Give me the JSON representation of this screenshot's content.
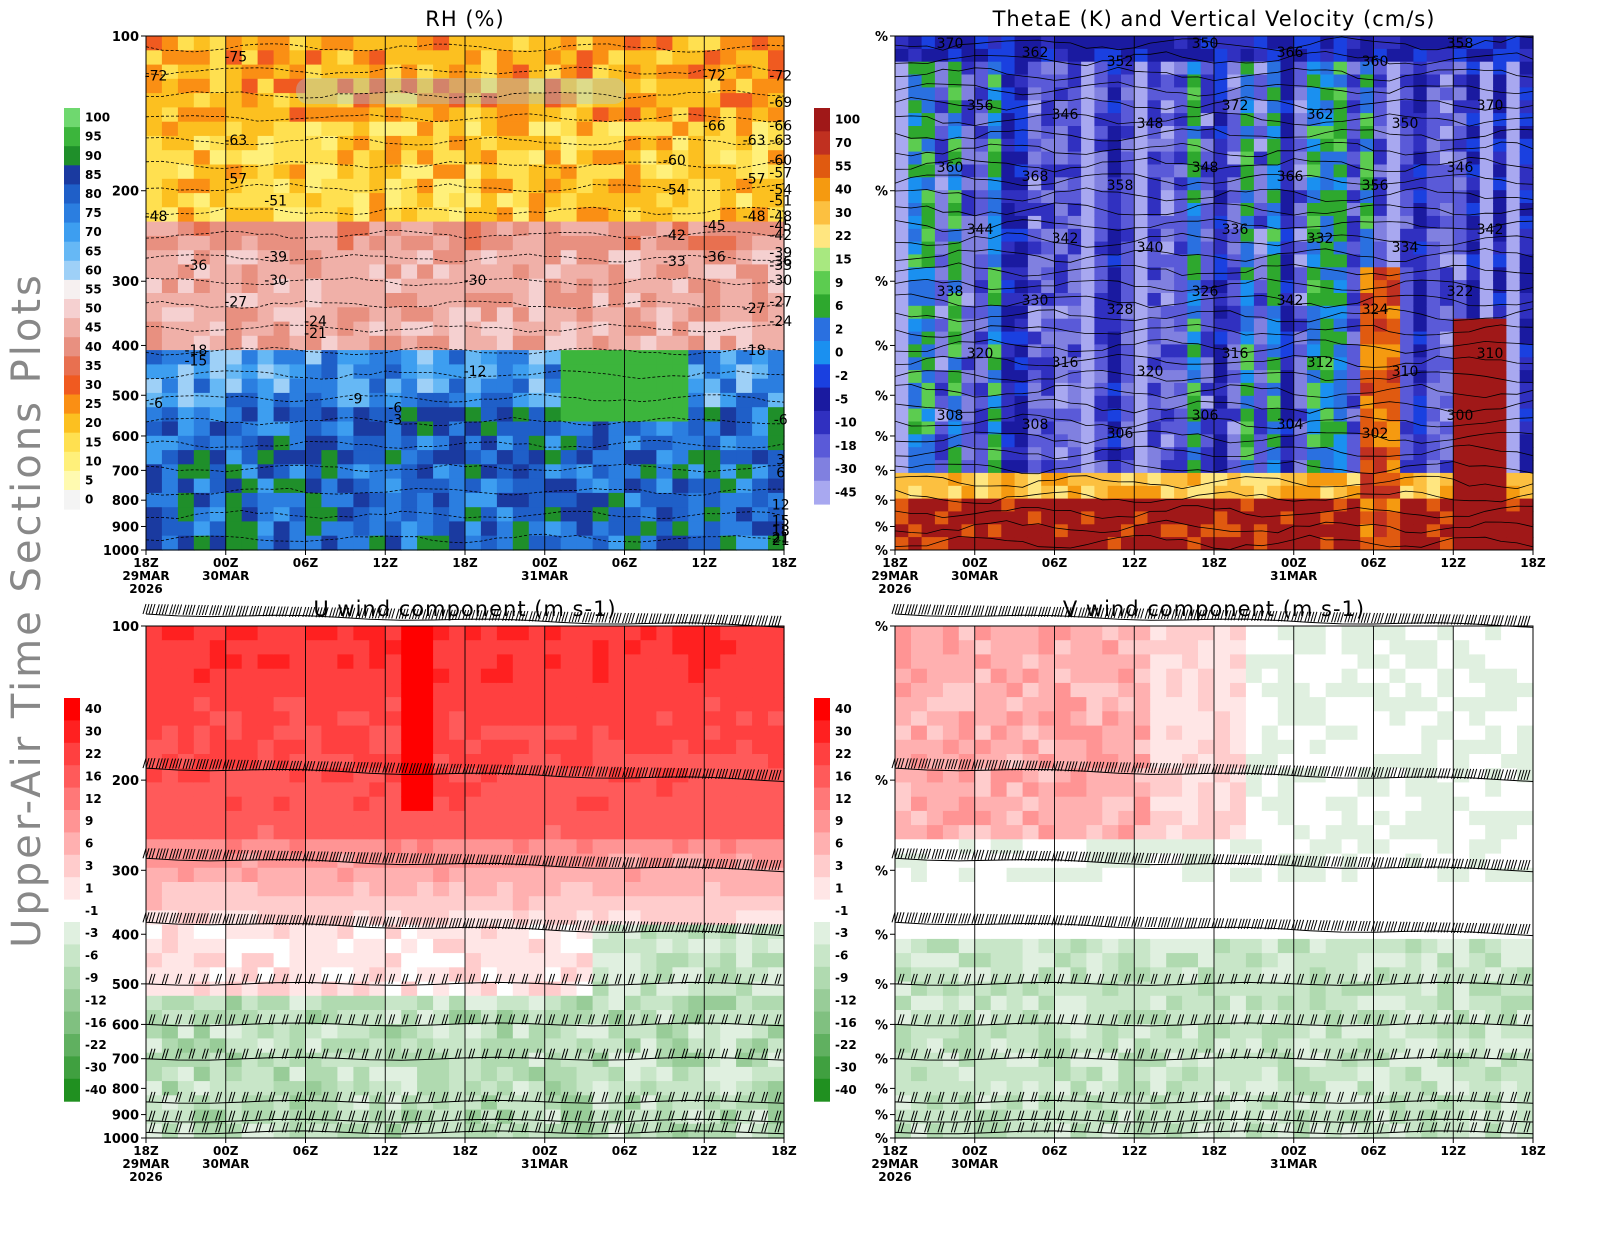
{
  "page": {
    "side_title": "Upper-Air Time Sections Plots"
  },
  "chart_data": [
    {
      "id": "rh",
      "type": "heatmap",
      "title": "RH (%)",
      "ylabel": "",
      "ylim": [
        1000,
        100
      ],
      "y_scale": "log-pressure",
      "y_ticks": [
        "100",
        "200",
        "300",
        "400",
        "500",
        "600",
        "700",
        "800",
        "900",
        "1000"
      ],
      "x_ticks": [
        "18Z",
        "00Z",
        "06Z",
        "12Z",
        "18Z",
        "00Z",
        "06Z",
        "12Z",
        "18Z"
      ],
      "x_date_labels": [
        {
          "at": 0,
          "lines": [
            "29MAR",
            "2026"
          ]
        },
        {
          "at": 1,
          "lines": [
            "30MAR"
          ]
        },
        {
          "at": 5,
          "lines": [
            "31MAR"
          ]
        }
      ],
      "colorbar_levels": [
        "100",
        "95",
        "90",
        "85",
        "80",
        "75",
        "70",
        "65",
        "60",
        "55",
        "50",
        "45",
        "40",
        "35",
        "30",
        "25",
        "20",
        "15",
        "10",
        "5",
        "0"
      ],
      "colorbar_colors": [
        "#6fd86f",
        "#3cb53c",
        "#1f8f2a",
        "#1a3aa0",
        "#1f5fc8",
        "#2b7ee0",
        "#3d9ef0",
        "#66b8f5",
        "#9ed0f7",
        "#f6f0f0",
        "#f5d0d0",
        "#f0b0a8",
        "#e89080",
        "#e87050",
        "#f05a20",
        "#fa8f14",
        "#fcc020",
        "#ffe050",
        "#fff07a",
        "#fffab0",
        "#f4f4f4"
      ],
      "contour_labels": [
        {
          "t": "18Z",
          "p": 120,
          "v": "-72"
        },
        {
          "t": "00Z",
          "p": 110,
          "v": "-75"
        },
        {
          "t": "00Z",
          "p": 160,
          "v": "-63"
        },
        {
          "t": "00Z",
          "p": 190,
          "v": "-57"
        },
        {
          "t": "18Z",
          "p": 225,
          "v": "-48"
        },
        {
          "t": "03Z",
          "p": 210,
          "v": "-51"
        },
        {
          "t": "21Z",
          "p": 280,
          "v": "-36"
        },
        {
          "t": "03Z",
          "p": 270,
          "v": "-39"
        },
        {
          "t": "03Z",
          "p": 300,
          "v": "-30"
        },
        {
          "t": "00Z",
          "p": 330,
          "v": "-27"
        },
        {
          "t": "06Z",
          "p": 360,
          "v": "-24"
        },
        {
          "t": "06Z",
          "p": 380,
          "v": "-21"
        },
        {
          "t": "21Z",
          "p": 410,
          "v": "-18"
        },
        {
          "t": "21Z",
          "p": 430,
          "v": "-15"
        },
        {
          "t": "09Z",
          "p": 510,
          "v": "-9"
        },
        {
          "t": "18Z",
          "p": 520,
          "v": "-6"
        },
        {
          "t": "12Z",
          "p": 530,
          "v": "-6"
        },
        {
          "t": "12Z",
          "p": 560,
          "v": "-3"
        },
        {
          "t": "12Z",
          "p": 120,
          "v": "-72"
        },
        {
          "t": "12Z",
          "p": 150,
          "v": "-66"
        },
        {
          "t": "09Z",
          "p": 175,
          "v": "-60"
        },
        {
          "t": "15Z",
          "p": 160,
          "v": "-63"
        },
        {
          "t": "15Z",
          "p": 190,
          "v": "-57"
        },
        {
          "t": "09Z",
          "p": 200,
          "v": "-54"
        },
        {
          "t": "15Z",
          "p": 225,
          "v": "-48"
        },
        {
          "t": "12Z",
          "p": 235,
          "v": "-45"
        },
        {
          "t": "09Z",
          "p": 245,
          "v": "-42"
        },
        {
          "t": "09Z",
          "p": 275,
          "v": "-33"
        },
        {
          "t": "12Z",
          "p": 270,
          "v": "-36"
        },
        {
          "t": "18Z",
          "p": 300,
          "v": "-30"
        },
        {
          "t": "15Z",
          "p": 340,
          "v": "-27"
        },
        {
          "t": "15Z",
          "p": 410,
          "v": "-18"
        },
        {
          "t": "18Z",
          "p": 450,
          "v": "-12"
        },
        {
          "t": "00Z",
          "p": 150,
          "v": "-66"
        },
        {
          "t": "06Z",
          "p": 135,
          "v": "-69"
        },
        {
          "t": "06Z",
          "p": 120,
          "v": "-72"
        },
        {
          "t": "06Z",
          "p": 160,
          "v": "-63"
        },
        {
          "t": "03Z",
          "p": 175,
          "v": "-60"
        },
        {
          "t": "06Z",
          "p": 185,
          "v": "-57"
        },
        {
          "t": "06Z",
          "p": 200,
          "v": "-54"
        },
        {
          "t": "00Z",
          "p": 210,
          "v": "-51"
        },
        {
          "t": "06Z",
          "p": 225,
          "v": "-48"
        },
        {
          "t": "03Z",
          "p": 235,
          "v": "-45"
        },
        {
          "t": "00Z",
          "p": 245,
          "v": "-42"
        },
        {
          "t": "06Z",
          "p": 265,
          "v": "-39"
        },
        {
          "t": "03Z",
          "p": 275,
          "v": "-36"
        },
        {
          "t": "00Z",
          "p": 280,
          "v": "-33"
        },
        {
          "t": "06Z",
          "p": 300,
          "v": "-30"
        },
        {
          "t": "03Z",
          "p": 330,
          "v": "-27"
        },
        {
          "t": "00Z",
          "p": 360,
          "v": "-24"
        },
        {
          "t": "03Z",
          "p": 560,
          "v": "-6"
        },
        {
          "t": "03Z",
          "p": 670,
          "v": "3"
        },
        {
          "t": "06Z",
          "p": 710,
          "v": "6"
        },
        {
          "t": "00Z",
          "p": 820,
          "v": "12"
        },
        {
          "t": "12Z",
          "p": 880,
          "v": "15"
        },
        {
          "t": "21Z",
          "p": 920,
          "v": "18"
        },
        {
          "t": "09Z",
          "p": 920,
          "v": "18"
        },
        {
          "t": "06Z",
          "p": 960,
          "v": "21"
        },
        {
          "t": "21Z",
          "p": 950,
          "v": "21"
        }
      ]
    },
    {
      "id": "thetae",
      "type": "heatmap",
      "title": "ThetaE (K) and Vertical Velocity (cm/s)",
      "y_tick_label": "%",
      "x_ticks": [
        "18Z",
        "00Z",
        "06Z",
        "12Z",
        "18Z",
        "00Z",
        "06Z",
        "12Z",
        "18Z"
      ],
      "x_date_labels": [
        {
          "at": 0,
          "lines": [
            "29MAR",
            "2026"
          ]
        },
        {
          "at": 1,
          "lines": [
            "30MAR"
          ]
        },
        {
          "at": 5,
          "lines": [
            "31MAR"
          ]
        }
      ],
      "colorbar_levels": [
        "100",
        "70",
        "55",
        "40",
        "30",
        "22",
        "15",
        "9",
        "6",
        "2",
        "0",
        "-2",
        "-5",
        "-10",
        "-18",
        "-30",
        "-45"
      ],
      "colorbar_colors": [
        "#a01818",
        "#c03020",
        "#e05a10",
        "#f59a10",
        "#fcc040",
        "#ffe680",
        "#a8e880",
        "#5ccc50",
        "#2ea82e",
        "#2a70e0",
        "#1a90f0",
        "#1a40e0",
        "#1a1aa0",
        "#3030c0",
        "#5a5ad8",
        "#8080e0",
        "#a8a8f0"
      ],
      "contour_labels": [
        "370",
        "362",
        "352",
        "350",
        "366",
        "360",
        "358",
        "356",
        "346",
        "348",
        "372",
        "362",
        "350",
        "370",
        "360",
        "368",
        "358",
        "348",
        "366",
        "356",
        "346",
        "344",
        "342",
        "340",
        "336",
        "332",
        "334",
        "342",
        "338",
        "330",
        "328",
        "326",
        "342",
        "324",
        "322",
        "320",
        "316",
        "320",
        "316",
        "312",
        "310",
        "310",
        "308",
        "308",
        "306",
        "306",
        "304",
        "302",
        "300"
      ]
    },
    {
      "id": "u_wind",
      "type": "heatmap",
      "title": "U wind component (m s-1)",
      "ylim": [
        1000,
        100
      ],
      "y_ticks": [
        "100",
        "200",
        "300",
        "400",
        "500",
        "600",
        "700",
        "800",
        "900",
        "1000"
      ],
      "x_ticks": [
        "18Z",
        "00Z",
        "06Z",
        "12Z",
        "18Z",
        "00Z",
        "06Z",
        "12Z",
        "18Z"
      ],
      "x_date_labels": [
        {
          "at": 0,
          "lines": [
            "29MAR",
            "2026"
          ]
        },
        {
          "at": 1,
          "lines": [
            "30MAR"
          ]
        },
        {
          "at": 5,
          "lines": [
            "31MAR"
          ]
        }
      ],
      "colorbar_levels": [
        "40",
        "30",
        "22",
        "16",
        "12",
        "9",
        "6",
        "3",
        "1",
        "-1",
        "-3",
        "-6",
        "-9",
        "-12",
        "-16",
        "-22",
        "-30",
        "-40"
      ],
      "colorbar_colors": [
        "#ff0000",
        "#ff2020",
        "#ff4040",
        "#ff5a5a",
        "#ff7878",
        "#ff9494",
        "#ffb0b0",
        "#ffcccc",
        "#ffe6e6",
        "#ffffff",
        "#e0f0e0",
        "#c8e6c8",
        "#b0dab0",
        "#98cc98",
        "#80c080",
        "#60b060",
        "#40a040",
        "#209020"
      ]
    },
    {
      "id": "v_wind",
      "type": "heatmap",
      "title": "V wind component (m s-1)",
      "y_tick_label": "%",
      "x_ticks": [
        "18Z",
        "00Z",
        "06Z",
        "12Z",
        "18Z",
        "00Z",
        "06Z",
        "12Z",
        "18Z"
      ],
      "x_date_labels": [
        {
          "at": 0,
          "lines": [
            "29MAR",
            "2026"
          ]
        },
        {
          "at": 1,
          "lines": [
            "30MAR"
          ]
        },
        {
          "at": 5,
          "lines": [
            "31MAR"
          ]
        }
      ],
      "colorbar_levels": [
        "40",
        "30",
        "22",
        "16",
        "12",
        "9",
        "6",
        "3",
        "1",
        "-1",
        "-3",
        "-6",
        "-9",
        "-12",
        "-16",
        "-22",
        "-30",
        "-40"
      ],
      "colorbar_colors": [
        "#ff0000",
        "#ff2020",
        "#ff4040",
        "#ff5a5a",
        "#ff7878",
        "#ff9494",
        "#ffb0b0",
        "#ffcccc",
        "#ffe6e6",
        "#ffffff",
        "#e0f0e0",
        "#c8e6c8",
        "#b0dab0",
        "#98cc98",
        "#80c080",
        "#60b060",
        "#40a040",
        "#209020"
      ]
    }
  ]
}
